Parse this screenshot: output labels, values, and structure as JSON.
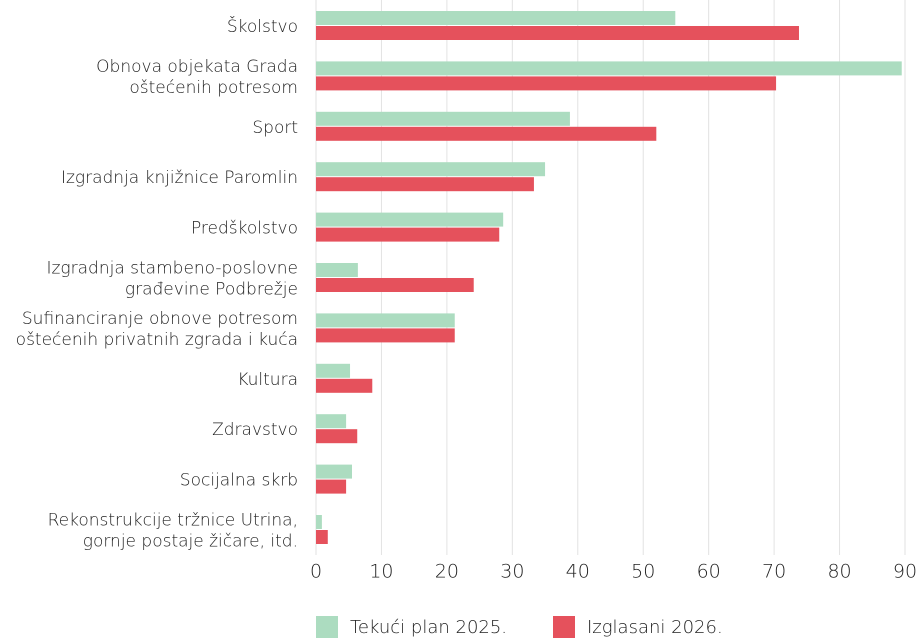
{
  "chart_data": {
    "type": "bar",
    "orientation": "horizontal",
    "categories": [
      [
        "Školstvo"
      ],
      [
        "Obnova objekata Grada",
        "oštećenih potresom"
      ],
      [
        "Sport"
      ],
      [
        "Izgradnja knjižnice Paromlin"
      ],
      [
        "Predškolstvo"
      ],
      [
        "Izgradnja stambeno-poslovne",
        "građevine Podbrežje"
      ],
      [
        "Sufinanciranje obnove potresom",
        "oštećenih privatnih zgrada i kuća"
      ],
      [
        "Kultura"
      ],
      [
        "Zdravstvo"
      ],
      [
        "Socijalna skrb"
      ],
      [
        "Rekonstrukcije tržnice Utrina,",
        "gornje postaje žičare, itd."
      ]
    ],
    "series": [
      {
        "name": "Tekući plan 2025.",
        "color": "#acdcc0",
        "values": [
          54.9,
          89.5,
          38.8,
          35,
          28.6,
          6.4,
          21.2,
          5.2,
          4.6,
          5.5,
          0.9
        ]
      },
      {
        "name": "Izglasani 2026.",
        "color": "#e5515c",
        "values": [
          73.8,
          70.3,
          52,
          33.3,
          28,
          24.1,
          21.2,
          8.6,
          6.3,
          4.6,
          1.8
        ]
      }
    ],
    "xlim": [
      0,
      90
    ],
    "xticks": [
      0,
      10,
      20,
      30,
      40,
      50,
      60,
      70,
      80,
      90
    ],
    "grid": true,
    "legend": "bottom"
  }
}
